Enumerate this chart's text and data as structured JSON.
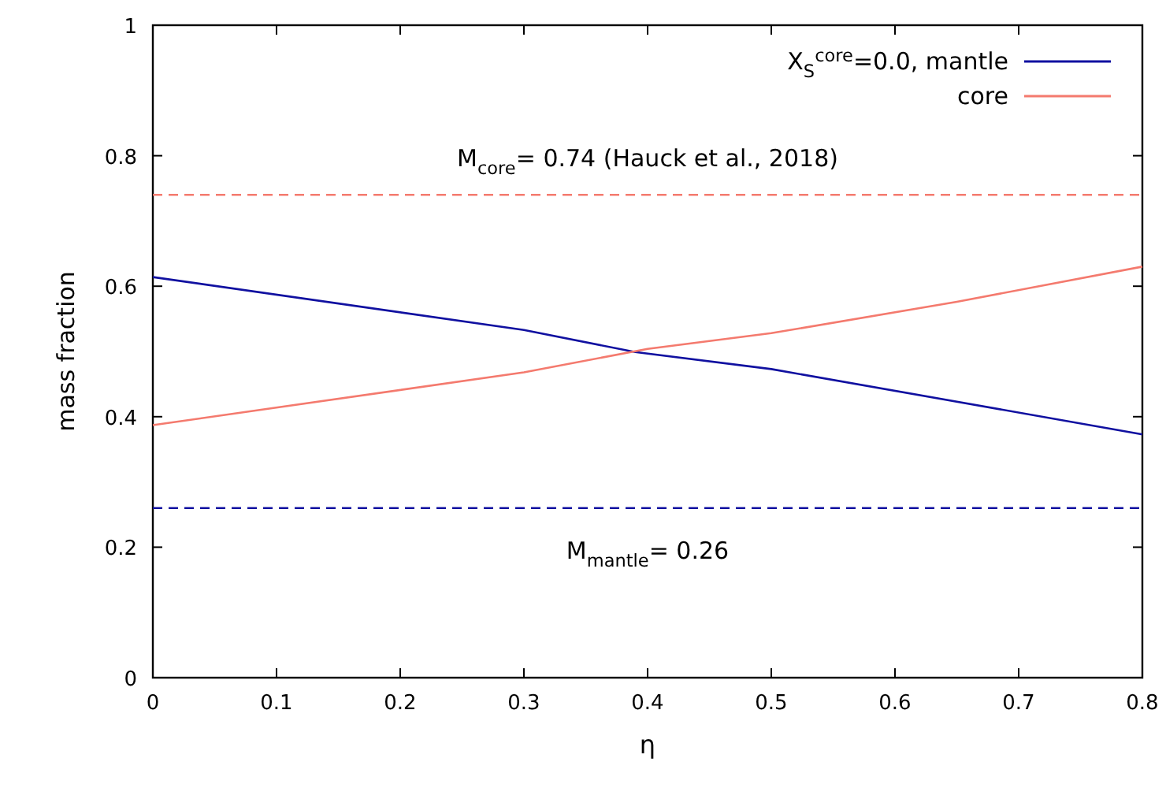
{
  "chart_data": {
    "type": "line",
    "xlabel": "η",
    "ylabel": "mass fraction",
    "xlim": [
      0,
      0.8
    ],
    "ylim": [
      0,
      1
    ],
    "xticks": [
      0,
      0.1,
      0.2,
      0.3,
      0.4,
      0.5,
      0.6,
      0.7,
      0.8
    ],
    "yticks": [
      0,
      0.2,
      0.4,
      0.6,
      0.8,
      1
    ],
    "series": [
      {
        "name": "X$_{S}$$^{core}$=0.0, mantle",
        "color": "#1010a0",
        "x": [
          0,
          0.3,
          0.39,
          0.5,
          0.8
        ],
        "values": [
          0.614,
          0.533,
          0.499,
          0.473,
          0.373
        ]
      },
      {
        "name": "core",
        "color": "#f47a6e",
        "x": [
          0,
          0.3,
          0.4,
          0.5,
          0.65,
          0.8
        ],
        "values": [
          0.387,
          0.468,
          0.504,
          0.528,
          0.576,
          0.63
        ]
      }
    ],
    "ref_lines": [
      {
        "axis": "y",
        "value": 0.74,
        "label": "M$_{core}$= 0.74 (Hauck et al., 2018)",
        "color": "#f47a6e",
        "line_style": "dashed"
      },
      {
        "axis": "y",
        "value": 0.26,
        "label": "M$_{mantle}$= 0.26",
        "color": "#1010a0",
        "line_style": "dashed"
      }
    ],
    "legend": "top right",
    "grid": false,
    "marker": "none",
    "line_style": "solid"
  }
}
